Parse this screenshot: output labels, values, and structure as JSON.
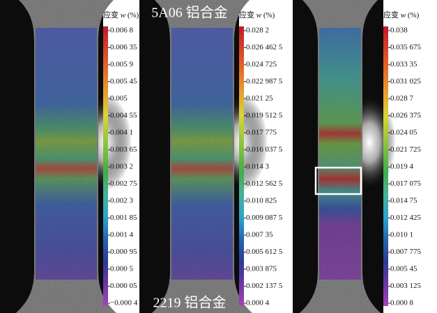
{
  "labels": {
    "top": "5A06 铝合金",
    "bottom": "2219 铝合金"
  },
  "panels": [
    {
      "colorbar": {
        "title": "应变",
        "symbol": "w",
        "unit": "(%)",
        "ticks": [
          "0.006 8",
          "0.006 35",
          "0.005 9",
          "0.005 45",
          "0.005",
          "0.004 55",
          "0.004 1",
          "0.003 65",
          "0.003 2",
          "0.002 75",
          "0.002 3",
          "0.001 85",
          "0.001 4",
          "0.000 95",
          "0.000 5",
          "0.000 05",
          "−0.000 4"
        ]
      }
    },
    {
      "colorbar": {
        "title": "应变",
        "symbol": "w",
        "unit": "(%)",
        "ticks": [
          "0.028 2",
          "0.026 462 5",
          "0.024 725",
          "0.022 987 5",
          "0.021 25",
          "0.019 512 5",
          "0.017 775",
          "0.016 037 5",
          "0.014 3",
          "0.012 562 5",
          "0.010 825",
          "0.009 087 5",
          "0.007 35",
          "0.005 612 5",
          "0.003 875",
          "0.002 137 5",
          "0.000 4"
        ]
      }
    },
    {
      "colorbar": {
        "title": "应变",
        "symbol": "w",
        "unit": "(%)",
        "ticks": [
          "0.038",
          "0.035 675",
          "0.033 35",
          "0.031 025",
          "0.028 7",
          "0.026 375",
          "0.024 05",
          "0.021 725",
          "0.019 4",
          "0.017 075",
          "0.014 75",
          "0.012 425",
          "0.010 1",
          "0.007 775",
          "0.005 45",
          "0.003 125",
          "0.000 8"
        ]
      }
    }
  ]
}
